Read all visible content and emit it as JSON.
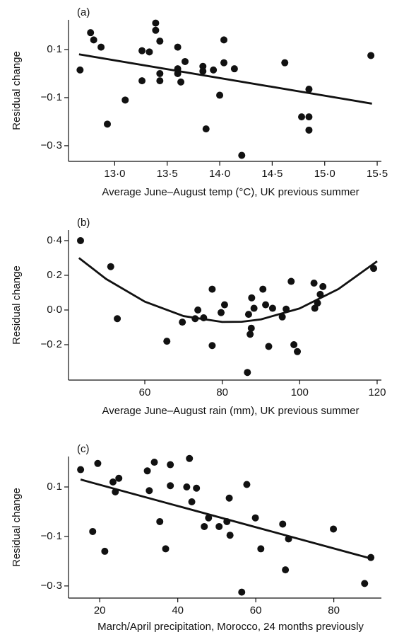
{
  "chart_data": [
    {
      "type": "scatter",
      "label": "(a)",
      "ylabel": "Residual change",
      "xlabel": "Average June–August temp (°C), UK previous summer",
      "color": "#111111",
      "xlim": [
        12.56,
        15.54
      ],
      "ylim": [
        -0.365,
        0.2235
      ],
      "xticks": [
        {
          "value": 13.0,
          "label": "13·0"
        },
        {
          "value": 13.5,
          "label": "13·5"
        },
        {
          "value": 14.0,
          "label": "14·0"
        },
        {
          "value": 14.5,
          "label": "14·5"
        },
        {
          "value": 15.0,
          "label": "15·0"
        },
        {
          "value": 15.5,
          "label": "15·5"
        }
      ],
      "yticks": [
        {
          "value": 0.1,
          "label": "0·1"
        },
        {
          "value": -0.1,
          "label": "−0·1"
        },
        {
          "value": -0.3,
          "label": "−0·3"
        }
      ],
      "x": [
        12.67,
        12.77,
        12.8,
        12.87,
        12.93,
        13.1,
        13.26,
        13.26,
        13.33,
        13.39,
        13.39,
        13.43,
        13.43,
        13.43,
        13.6,
        13.6,
        13.6,
        13.63,
        13.67,
        13.84,
        13.84,
        13.87,
        13.94,
        14.0,
        14.04,
        14.04,
        14.14,
        14.21,
        14.62,
        14.78,
        14.85,
        14.85,
        14.85,
        15.44
      ],
      "y": [
        0.015,
        0.17,
        0.14,
        0.11,
        -0.21,
        -0.11,
        0.095,
        -0.03,
        0.09,
        0.21,
        0.18,
        0.135,
        0.0,
        -0.03,
        0.11,
        0.02,
        0.0,
        -0.035,
        0.05,
        0.03,
        0.01,
        -0.23,
        0.015,
        -0.09,
        0.14,
        0.045,
        0.02,
        -0.34,
        0.045,
        -0.18,
        -0.065,
        -0.18,
        -0.235,
        0.075
      ],
      "fit": {
        "x": [
          12.66,
          15.45
        ],
        "y": [
          0.08,
          -0.125
        ]
      }
    },
    {
      "type": "scatter",
      "label": "(b)",
      "ylabel": "Residual change",
      "xlabel": "Average June–August rain (mm), UK previous summer",
      "color": "#111111",
      "xlim": [
        40.3,
        121.1
      ],
      "ylim": [
        -0.404,
        0.461
      ],
      "xticks": [
        60,
        80,
        100,
        120
      ],
      "yticks": [
        {
          "value": 0.4,
          "label": "0·4"
        },
        {
          "value": 0.2,
          "label": "0·2"
        },
        {
          "value": 0.0,
          "label": "0·0"
        },
        {
          "value": -0.2,
          "label": "−0·2"
        }
      ],
      "x": [
        43.4,
        51.2,
        52.9,
        65.7,
        69.7,
        73.0,
        73.7,
        75.2,
        77.4,
        77.4,
        79.7,
        80.6,
        86.5,
        86.8,
        87.2,
        87.5,
        87.6,
        88.2,
        90.5,
        91.2,
        92.0,
        93.0,
        95.5,
        96.5,
        97.8,
        98.5,
        99.4,
        103.7,
        103.9,
        104.6,
        105.3,
        106.0,
        119.1
      ],
      "y": [
        0.4,
        0.25,
        -0.05,
        -0.18,
        -0.07,
        -0.05,
        0.0,
        -0.045,
        0.12,
        -0.205,
        -0.015,
        0.03,
        -0.36,
        -0.025,
        -0.14,
        -0.105,
        0.07,
        0.01,
        0.12,
        0.03,
        -0.21,
        0.01,
        -0.04,
        0.005,
        0.165,
        -0.2,
        -0.24,
        0.155,
        0.01,
        0.04,
        0.09,
        0.135,
        0.24
      ],
      "fit": {
        "x": [
          43,
          50,
          60,
          70,
          80,
          85,
          90,
          100,
          110,
          120
        ],
        "y": [
          0.3,
          0.179,
          0.048,
          -0.035,
          -0.069,
          -0.068,
          -0.054,
          0.009,
          0.121,
          0.281
        ]
      }
    },
    {
      "type": "scatter",
      "label": "(c)",
      "ylabel": "Residual change",
      "xlabel": "March/April precipitation, Morocco, 24 months previously",
      "color": "#111111",
      "xlim": [
        12.0,
        92.2
      ],
      "ylim": [
        -0.349,
        0.223
      ],
      "xticks": [
        20,
        40,
        60,
        80
      ],
      "yticks": [
        {
          "value": 0.1,
          "label": "0·1"
        },
        {
          "value": -0.1,
          "label": "−0·1"
        },
        {
          "value": -0.3,
          "label": "−0·3"
        }
      ],
      "x": [
        15.1,
        18.2,
        19.5,
        21.3,
        23.4,
        24.0,
        24.9,
        32.2,
        32.7,
        34.0,
        35.4,
        36.9,
        38.1,
        38.1,
        42.3,
        43.0,
        43.6,
        44.8,
        46.8,
        47.9,
        50.6,
        52.6,
        53.2,
        53.4,
        56.4,
        57.7,
        59.9,
        61.3,
        66.9,
        67.6,
        68.4,
        79.9,
        87.9,
        89.5
      ],
      "y": [
        0.17,
        -0.08,
        0.195,
        -0.16,
        0.12,
        0.08,
        0.135,
        0.165,
        0.085,
        0.2,
        -0.04,
        -0.15,
        0.19,
        0.105,
        0.1,
        0.215,
        0.04,
        0.095,
        -0.06,
        -0.025,
        -0.06,
        -0.04,
        0.055,
        -0.095,
        -0.325,
        0.11,
        -0.025,
        -0.15,
        -0.05,
        -0.235,
        -0.11,
        -0.07,
        -0.29,
        -0.185
      ],
      "fit": {
        "x": [
          15.1,
          89.7
        ],
        "y": [
          0.13,
          -0.19
        ]
      }
    }
  ]
}
